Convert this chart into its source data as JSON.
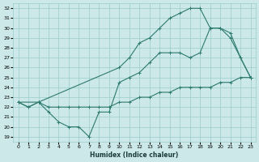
{
  "xlabel": "Humidex (Indice chaleur)",
  "bg_color": "#cce8e8",
  "grid_color": "#99cccc",
  "line_color": "#2d7a6e",
  "xlim": [
    -0.5,
    23.5
  ],
  "ylim": [
    18.5,
    32.5
  ],
  "yticks": [
    19,
    20,
    21,
    22,
    23,
    24,
    25,
    26,
    27,
    28,
    29,
    30,
    31,
    32
  ],
  "xticks": [
    0,
    1,
    2,
    3,
    4,
    5,
    6,
    7,
    8,
    9,
    10,
    11,
    12,
    13,
    14,
    15,
    16,
    17,
    18,
    19,
    20,
    21,
    22,
    23
  ],
  "line1_x": [
    0,
    1,
    2,
    3,
    4,
    5,
    6,
    7,
    8,
    9,
    10,
    11,
    12,
    13,
    14,
    15,
    16,
    17,
    18,
    19,
    20,
    21,
    22,
    23
  ],
  "line1_y": [
    22.5,
    22.0,
    22.5,
    22.0,
    22.0,
    22.0,
    22.0,
    22.0,
    22.0,
    22.0,
    22.5,
    22.5,
    23.0,
    23.0,
    23.5,
    23.5,
    24.0,
    24.0,
    24.0,
    24.0,
    24.5,
    24.5,
    25.0,
    25.0
  ],
  "line2_x": [
    0,
    1,
    2,
    3,
    4,
    5,
    6,
    7,
    8,
    9,
    10,
    11,
    12,
    13,
    14,
    15,
    16,
    17,
    18,
    19,
    20,
    21,
    22,
    23
  ],
  "line2_y": [
    22.5,
    22.0,
    22.5,
    21.5,
    20.5,
    20.0,
    20.0,
    19.0,
    21.5,
    21.5,
    24.5,
    25.0,
    25.5,
    26.5,
    27.5,
    27.5,
    27.5,
    27.0,
    27.5,
    30.0,
    30.0,
    29.5,
    27.0,
    25.0
  ],
  "line3_x": [
    0,
    2,
    10,
    11,
    12,
    13,
    14,
    15,
    16,
    17,
    18,
    19,
    20,
    21,
    22,
    23
  ],
  "line3_y": [
    22.5,
    22.5,
    26.0,
    27.0,
    28.5,
    29.0,
    30.0,
    31.0,
    31.5,
    32.0,
    32.0,
    30.0,
    30.0,
    29.0,
    27.0,
    25.0
  ]
}
